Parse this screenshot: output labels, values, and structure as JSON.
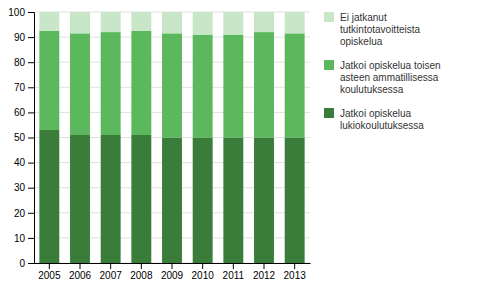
{
  "chart_data": {
    "type": "bar",
    "stacked": true,
    "categories": [
      "2005",
      "2006",
      "2007",
      "2008",
      "2009",
      "2010",
      "2011",
      "2012",
      "2013"
    ],
    "series": [
      {
        "name": "Jatkoi opiskelua\nlukiokoulutuksessa",
        "color": "#3a7d3a",
        "values": [
          53.0,
          51.0,
          51.0,
          51.0,
          50.0,
          50.0,
          50.0,
          50.0,
          50.0
        ]
      },
      {
        "name": "Jatkoi opiskelua toisen\nasteen ammatillisessa\nkoulutuksessa",
        "color": "#5cb85c",
        "values": [
          39.5,
          40.5,
          41.0,
          41.5,
          41.5,
          41.0,
          41.0,
          42.0,
          41.5
        ]
      },
      {
        "name": "Ei jatkanut\ntutkintotavoitteista\nopiskelua",
        "color": "#c8e6c8",
        "values": [
          7.5,
          8.5,
          8.0,
          7.5,
          8.5,
          9.0,
          9.0,
          8.0,
          8.5
        ]
      }
    ],
    "ylim": [
      0,
      100
    ],
    "yticks": [
      0,
      10,
      20,
      30,
      40,
      50,
      60,
      70,
      80,
      90,
      100
    ],
    "grid": true,
    "legend": "right"
  }
}
